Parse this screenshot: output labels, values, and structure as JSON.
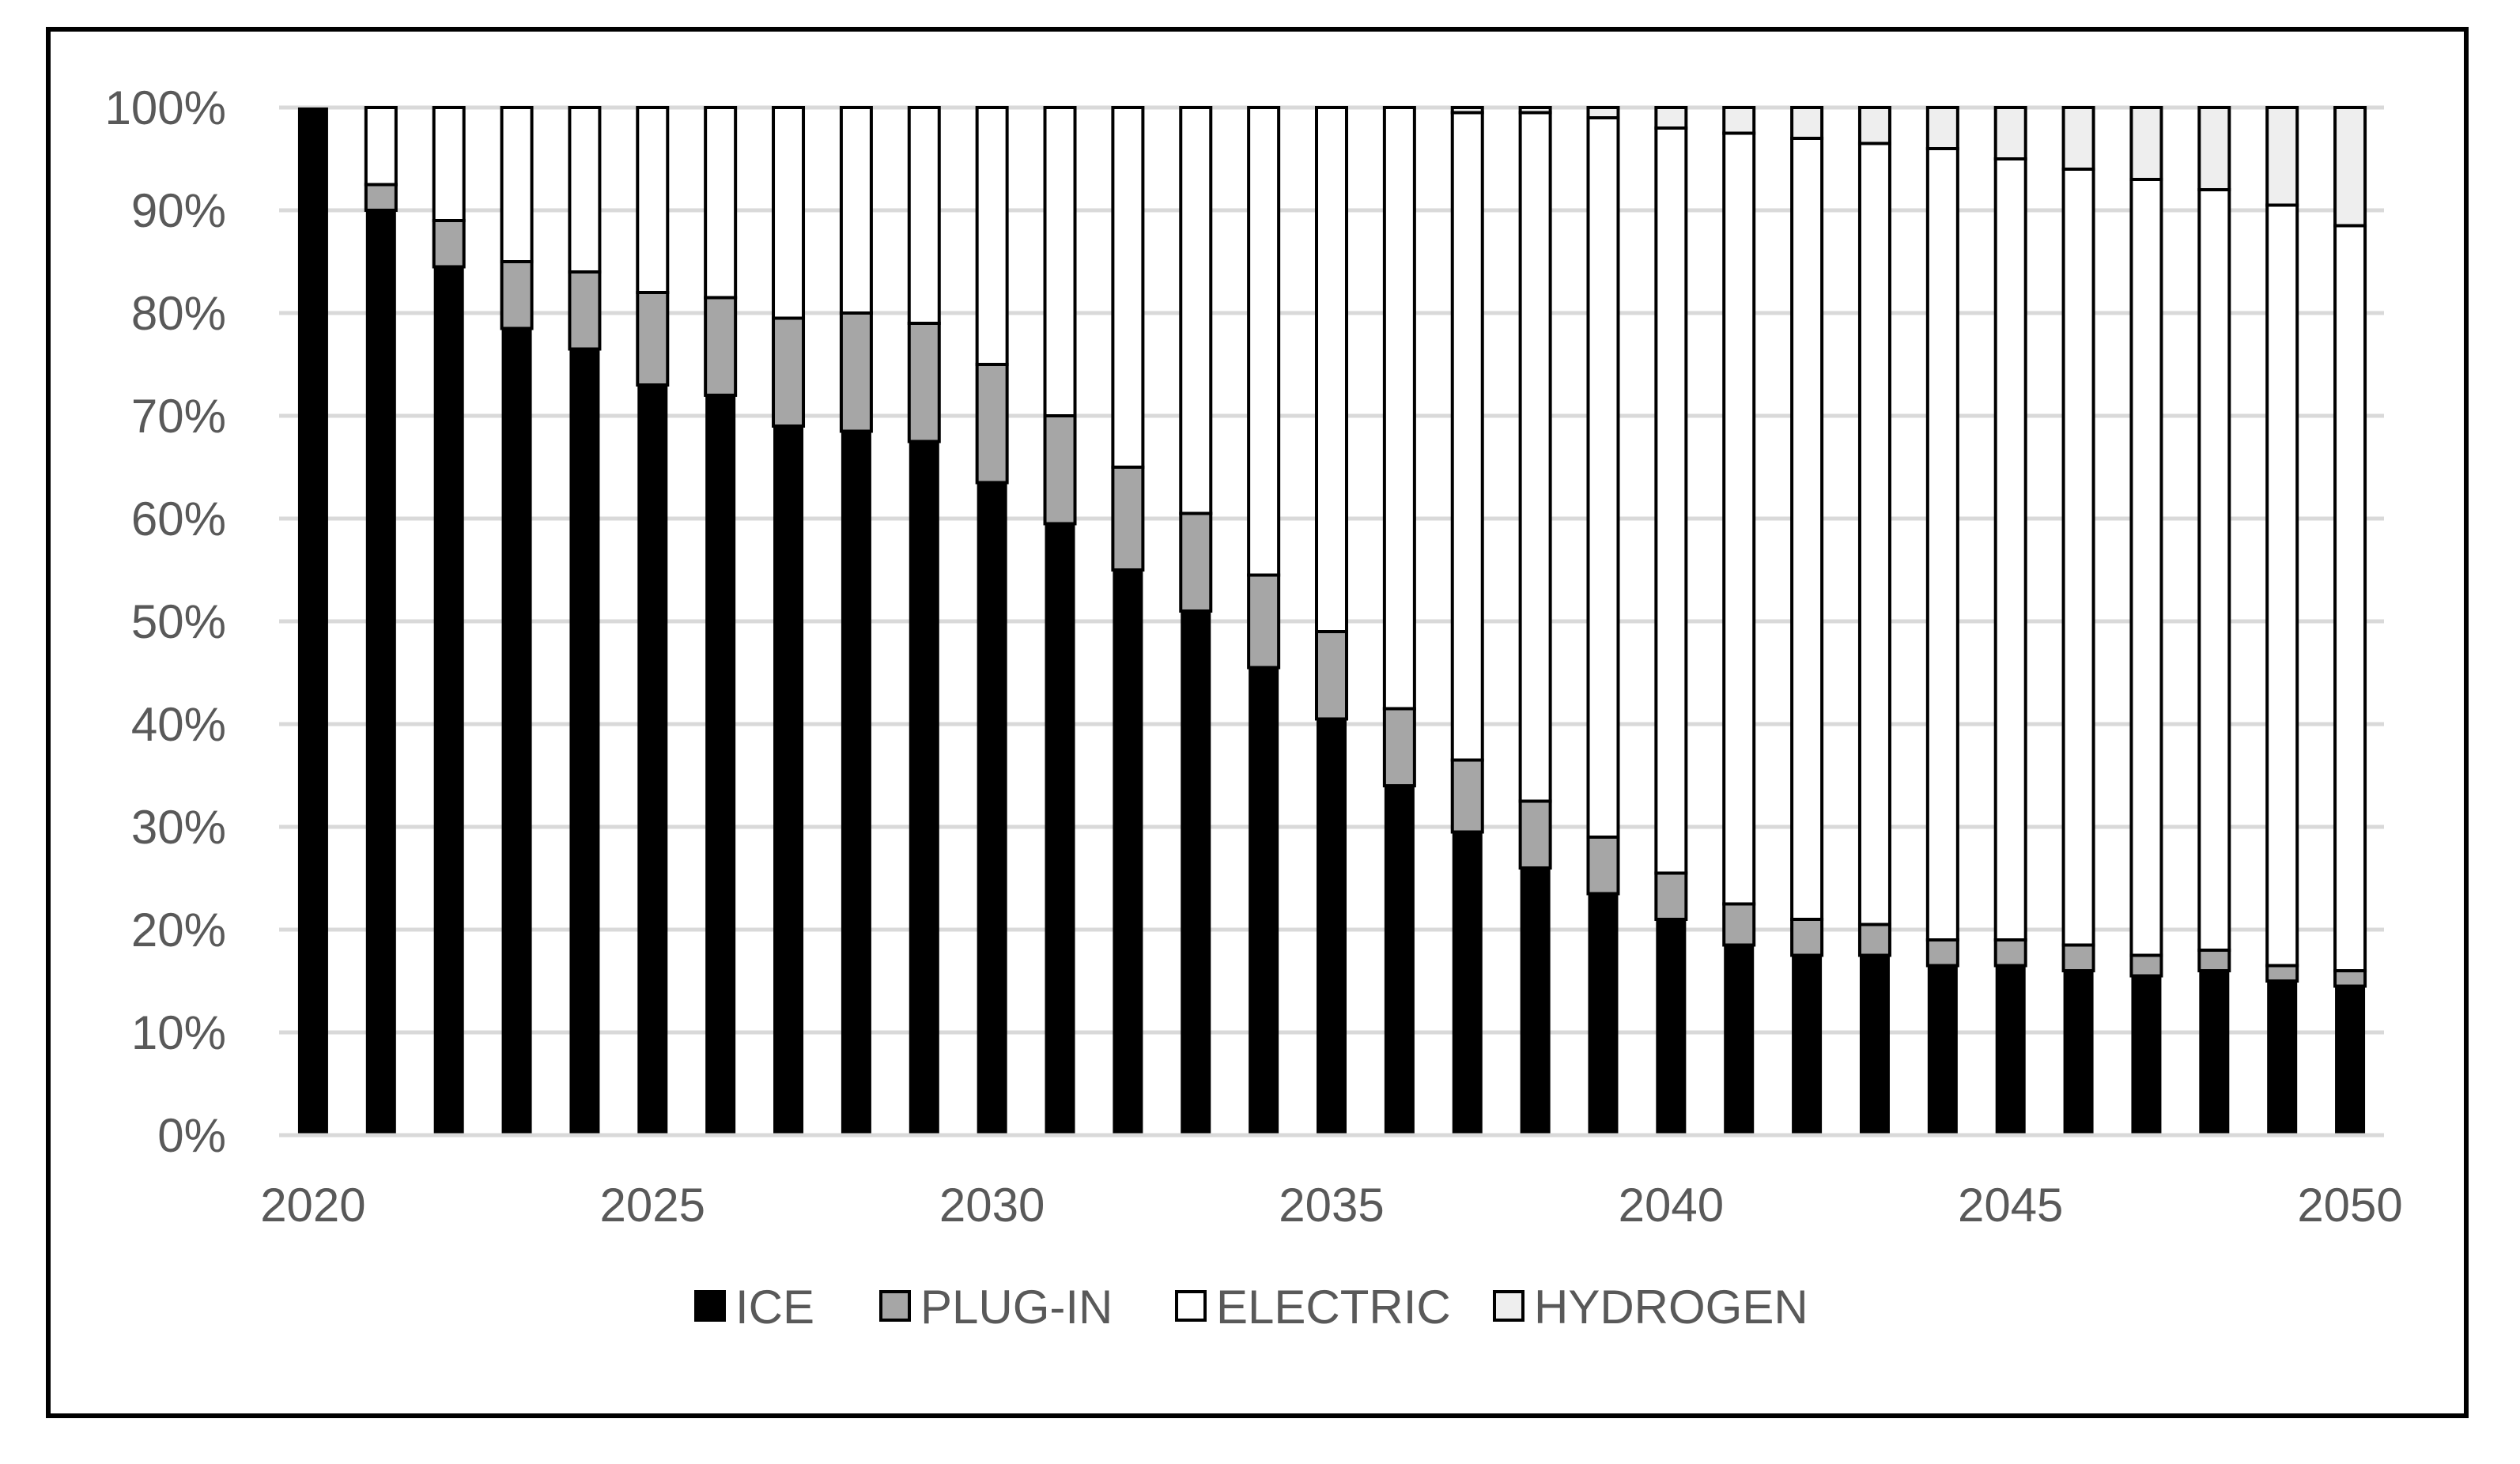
{
  "chart_data": {
    "type": "bar",
    "stacked": true,
    "title": "",
    "xlabel": "",
    "ylabel": "",
    "ylim": [
      0,
      100
    ],
    "y_unit": "%",
    "y_ticks": [
      "0%",
      "10%",
      "20%",
      "30%",
      "40%",
      "50%",
      "60%",
      "70%",
      "80%",
      "90%",
      "100%"
    ],
    "x_tick_labels": [
      "2020",
      "2025",
      "2030",
      "2035",
      "2040",
      "2045",
      "2050"
    ],
    "grid": true,
    "legend_position": "bottom",
    "categories": [
      "2020",
      "2021",
      "2022",
      "2023",
      "2024",
      "2025",
      "2026",
      "2027",
      "2028",
      "2029",
      "2030",
      "2031",
      "2032",
      "2033",
      "2034",
      "2035",
      "2036",
      "2037",
      "2038",
      "2039",
      "2040",
      "2041",
      "2042",
      "2043",
      "2044",
      "2045",
      "2046",
      "2047",
      "2048",
      "2049",
      "2050"
    ],
    "series": [
      {
        "name": "ICE",
        "color": "#000000",
        "values": [
          100,
          90,
          84.5,
          78.5,
          76.5,
          73,
          72,
          69,
          68.5,
          67.5,
          63.5,
          59.5,
          55,
          51,
          45.5,
          40.5,
          34,
          29.5,
          26,
          23.5,
          21,
          18.5,
          17.5,
          17.5,
          16.5,
          16.5,
          16,
          15.5,
          16,
          15,
          14.5
        ]
      },
      {
        "name": "PLUG-IN",
        "color": "#a6a6a6",
        "values": [
          0,
          2.5,
          4.5,
          6.5,
          7.5,
          9,
          9.5,
          10.5,
          11.5,
          11.5,
          11.5,
          10.5,
          10,
          9.5,
          9,
          8.5,
          7.5,
          7,
          6.5,
          5.5,
          4.5,
          4,
          3.5,
          3,
          2.5,
          2.5,
          2.5,
          2,
          2,
          1.5,
          1.5
        ]
      },
      {
        "name": "ELECTRIC",
        "color": "#ffffff",
        "values": [
          0,
          7.5,
          11,
          15,
          16,
          18,
          18.5,
          20.5,
          20,
          21,
          25,
          30,
          35,
          39.5,
          45.5,
          51,
          58.5,
          63,
          67,
          70,
          72.5,
          75,
          76,
          76,
          77,
          76,
          75.5,
          75.5,
          74,
          74,
          72.5
        ]
      },
      {
        "name": "HYDROGEN",
        "color": "#eeeeee",
        "values": [
          0,
          0,
          0,
          0,
          0,
          0,
          0,
          0,
          0,
          0,
          0,
          0,
          0,
          0,
          0,
          0,
          0,
          0.5,
          0.5,
          1,
          2,
          2.5,
          3,
          3.5,
          4,
          5,
          6,
          7,
          8,
          9.5,
          11.5
        ]
      }
    ]
  }
}
